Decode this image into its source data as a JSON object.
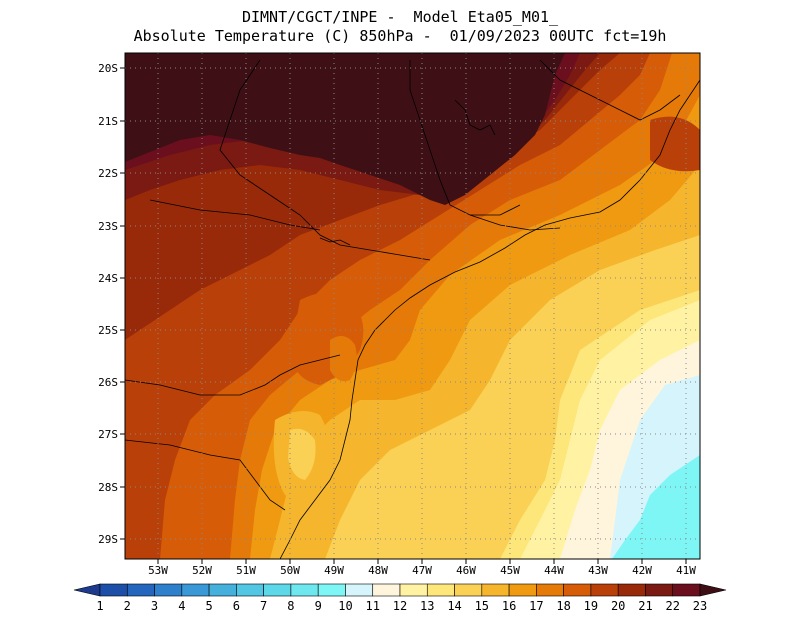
{
  "header": {
    "line1": "DIMNT/CGCT/INPE -  Model Eta05_M01_",
    "line2": "Absolute Temperature (C) 850hPa -  01/09/2023 00UTC fct=19h"
  },
  "axes": {
    "lat_labels": [
      "20S",
      "21S",
      "22S",
      "23S",
      "24S",
      "25S",
      "26S",
      "27S",
      "28S",
      "29S"
    ],
    "lon_labels": [
      "53W",
      "52W",
      "51W",
      "50W",
      "49W",
      "48W",
      "47W",
      "46W",
      "45W",
      "44W",
      "43W",
      "42W",
      "41W"
    ]
  },
  "colorbar": {
    "labels": [
      "1",
      "2",
      "3",
      "4",
      "5",
      "6",
      "7",
      "8",
      "9",
      "10",
      "11",
      "12",
      "13",
      "14",
      "15",
      "16",
      "17",
      "18",
      "19",
      "20",
      "21",
      "22",
      "23"
    ],
    "colors": [
      "#1e3a8f",
      "#1d4fa8",
      "#2466bd",
      "#2e7fcc",
      "#3a98d6",
      "#46b0dd",
      "#52c6e2",
      "#5dd8e8",
      "#6ee8ee",
      "#7ef6f6",
      "#d6f4fb",
      "#fff5dc",
      "#fff3a3",
      "#fde67a",
      "#fad055",
      "#f5b52c",
      "#f09a12",
      "#e67a08",
      "#d65c08",
      "#b94009",
      "#982a0a",
      "#7a1a12",
      "#6b0f1e",
      "#3e0e14"
    ]
  },
  "map": {
    "grid_style": "dotted",
    "contour_colors": {
      "c23plus": "#3e1016",
      "c22": "#6b0f1e",
      "c21": "#7a1a12",
      "c20": "#982a0a",
      "c19": "#b94009",
      "c18": "#d65c08",
      "c17": "#e67a08",
      "c16": "#f09a12",
      "c15": "#f5b52c",
      "c14": "#fad055",
      "c13": "#fde67a",
      "c12": "#fff3a3",
      "c11": "#fff5dc",
      "c10": "#d6f4fb",
      "c9": "#7ef6f6"
    }
  }
}
